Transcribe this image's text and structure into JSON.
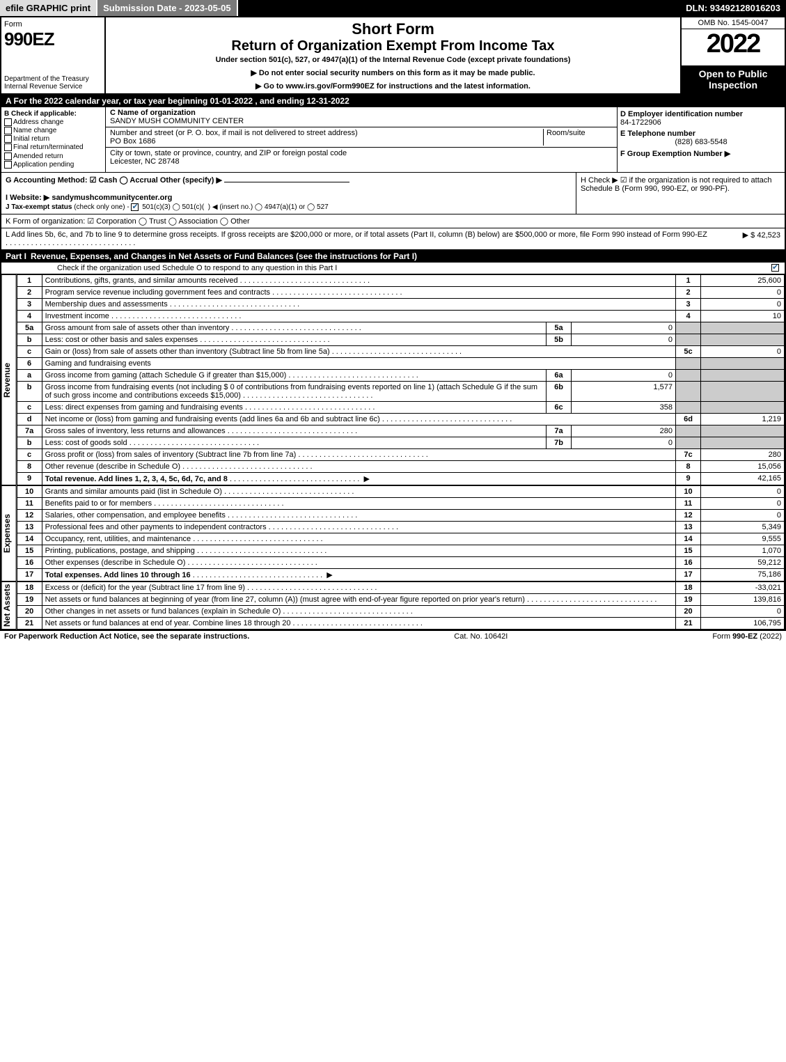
{
  "topbar": {
    "efile": "efile GRAPHIC print",
    "submission": "Submission Date - 2023-05-05",
    "dln": "DLN: 93492128016203"
  },
  "header": {
    "form_word": "Form",
    "form_num": "990EZ",
    "dept": "Department of the Treasury\nInternal Revenue Service",
    "title1": "Short Form",
    "title2": "Return of Organization Exempt From Income Tax",
    "sub1": "Under section 501(c), 527, or 4947(a)(1) of the Internal Revenue Code (except private foundations)",
    "sub2": "▶ Do not enter social security numbers on this form as it may be made public.",
    "sub3": "▶ Go to www.irs.gov/Form990EZ for instructions and the latest information.",
    "omb": "OMB No. 1545-0047",
    "year": "2022",
    "open": "Open to Public Inspection"
  },
  "lineA": "A  For the 2022 calendar year, or tax year beginning 01-01-2022 , and ending 12-31-2022",
  "boxB": {
    "title": "B  Check if applicable:",
    "addr": "Address change",
    "name": "Name change",
    "init": "Initial return",
    "final": "Final return/terminated",
    "amend": "Amended return",
    "app": "Application pending"
  },
  "boxC": {
    "name_lbl": "C Name of organization",
    "name": "SANDY MUSH COMMUNITY CENTER",
    "street_lbl": "Number and street (or P. O. box, if mail is not delivered to street address)",
    "room_lbl": "Room/suite",
    "street": "PO Box 1686",
    "city_lbl": "City or town, state or province, country, and ZIP or foreign postal code",
    "city": "Leicester, NC  28748"
  },
  "boxD": {
    "ein_lbl": "D Employer identification number",
    "ein": "84-1722906",
    "tel_lbl": "E Telephone number",
    "tel": "(828) 683-5548",
    "grp_lbl": "F Group Exemption Number  ▶"
  },
  "lineG": "G Accounting Method:   ☑ Cash  ◯ Accrual   Other (specify) ▶",
  "lineH": "H  Check ▶ ☑ if the organization is not required to attach Schedule B (Form 990, 990-EZ, or 990-PF).",
  "lineI": "I Website: ▶ sandymushcommunitycenter.org",
  "lineJ": "J Tax-exempt status (check only one) - ☑ 501(c)(3)  ◯ 501(c)(  ) ◀ (insert no.)  ◯ 4947(a)(1) or  ◯ 527",
  "lineK": "K Form of organization:  ☑ Corporation  ◯ Trust  ◯ Association  ◯ Other",
  "lineL": {
    "text": "L Add lines 5b, 6c, and 7b to line 9 to determine gross receipts. If gross receipts are $200,000 or more, or if total assets (Part II, column (B) below) are $500,000 or more, file Form 990 instead of Form 990-EZ",
    "amount": "▶ $ 42,523"
  },
  "part1": {
    "label": "Part I",
    "title": "Revenue, Expenses, and Changes in Net Assets or Fund Balances (see the instructions for Part I)",
    "sub": "Check if the organization used Schedule O to respond to any question in this Part I"
  },
  "sections": {
    "revenue": "Revenue",
    "expenses": "Expenses",
    "netassets": "Net Assets"
  },
  "rows": [
    {
      "ln": "1",
      "desc": "Contributions, gifts, grants, and similar amounts received",
      "num": "1",
      "amt": "25,600",
      "sec": "rev"
    },
    {
      "ln": "2",
      "desc": "Program service revenue including government fees and contracts",
      "num": "2",
      "amt": "0",
      "sec": "rev"
    },
    {
      "ln": "3",
      "desc": "Membership dues and assessments",
      "num": "3",
      "amt": "0",
      "sec": "rev"
    },
    {
      "ln": "4",
      "desc": "Investment income",
      "num": "4",
      "amt": "10",
      "sec": "rev"
    },
    {
      "ln": "5a",
      "desc": "Gross amount from sale of assets other than inventory",
      "sublbl": "5a",
      "subamt": "0",
      "sec": "rev",
      "shaded": true
    },
    {
      "ln": "b",
      "desc": "Less: cost or other basis and sales expenses",
      "sublbl": "5b",
      "subamt": "0",
      "sec": "rev",
      "shaded": true
    },
    {
      "ln": "c",
      "desc": "Gain or (loss) from sale of assets other than inventory (Subtract line 5b from line 5a)",
      "num": "5c",
      "amt": "0",
      "sec": "rev"
    },
    {
      "ln": "6",
      "desc": "Gaming and fundraising events",
      "sec": "rev",
      "shaded": true,
      "noamt": true
    },
    {
      "ln": "a",
      "desc": "Gross income from gaming (attach Schedule G if greater than $15,000)",
      "sublbl": "6a",
      "subamt": "0",
      "sec": "rev",
      "shaded": true
    },
    {
      "ln": "b",
      "desc": "Gross income from fundraising events (not including $  0               of contributions from fundraising events reported on line 1) (attach Schedule G if the sum of such gross income and contributions exceeds $15,000)",
      "sublbl": "6b",
      "subamt": "1,577",
      "sec": "rev",
      "shaded": true
    },
    {
      "ln": "c",
      "desc": "Less: direct expenses from gaming and fundraising events",
      "sublbl": "6c",
      "subamt": "358",
      "sec": "rev",
      "shaded": true
    },
    {
      "ln": "d",
      "desc": "Net income or (loss) from gaming and fundraising events (add lines 6a and 6b and subtract line 6c)",
      "num": "6d",
      "amt": "1,219",
      "sec": "rev"
    },
    {
      "ln": "7a",
      "desc": "Gross sales of inventory, less returns and allowances",
      "sublbl": "7a",
      "subamt": "280",
      "sec": "rev",
      "shaded": true
    },
    {
      "ln": "b",
      "desc": "Less: cost of goods sold",
      "sublbl": "7b",
      "subamt": "0",
      "sec": "rev",
      "shaded": true
    },
    {
      "ln": "c",
      "desc": "Gross profit or (loss) from sales of inventory (Subtract line 7b from line 7a)",
      "num": "7c",
      "amt": "280",
      "sec": "rev"
    },
    {
      "ln": "8",
      "desc": "Other revenue (describe in Schedule O)",
      "num": "8",
      "amt": "15,056",
      "sec": "rev"
    },
    {
      "ln": "9",
      "desc": "Total revenue. Add lines 1, 2, 3, 4, 5c, 6d, 7c, and 8",
      "num": "9",
      "amt": "42,165",
      "sec": "rev",
      "bold": true,
      "arrow": true
    },
    {
      "ln": "10",
      "desc": "Grants and similar amounts paid (list in Schedule O)",
      "num": "10",
      "amt": "0",
      "sec": "exp"
    },
    {
      "ln": "11",
      "desc": "Benefits paid to or for members",
      "num": "11",
      "amt": "0",
      "sec": "exp"
    },
    {
      "ln": "12",
      "desc": "Salaries, other compensation, and employee benefits",
      "num": "12",
      "amt": "0",
      "sec": "exp"
    },
    {
      "ln": "13",
      "desc": "Professional fees and other payments to independent contractors",
      "num": "13",
      "amt": "5,349",
      "sec": "exp"
    },
    {
      "ln": "14",
      "desc": "Occupancy, rent, utilities, and maintenance",
      "num": "14",
      "amt": "9,555",
      "sec": "exp"
    },
    {
      "ln": "15",
      "desc": "Printing, publications, postage, and shipping",
      "num": "15",
      "amt": "1,070",
      "sec": "exp"
    },
    {
      "ln": "16",
      "desc": "Other expenses (describe in Schedule O)",
      "num": "16",
      "amt": "59,212",
      "sec": "exp"
    },
    {
      "ln": "17",
      "desc": "Total expenses. Add lines 10 through 16",
      "num": "17",
      "amt": "75,186",
      "sec": "exp",
      "bold": true,
      "arrow": true
    },
    {
      "ln": "18",
      "desc": "Excess or (deficit) for the year (Subtract line 17 from line 9)",
      "num": "18",
      "amt": "-33,021",
      "sec": "na"
    },
    {
      "ln": "19",
      "desc": "Net assets or fund balances at beginning of year (from line 27, column (A)) (must agree with end-of-year figure reported on prior year's return)",
      "num": "19",
      "amt": "139,816",
      "sec": "na"
    },
    {
      "ln": "20",
      "desc": "Other changes in net assets or fund balances (explain in Schedule O)",
      "num": "20",
      "amt": "0",
      "sec": "na"
    },
    {
      "ln": "21",
      "desc": "Net assets or fund balances at end of year. Combine lines 18 through 20",
      "num": "21",
      "amt": "106,795",
      "sec": "na"
    }
  ],
  "footer": {
    "left": "For Paperwork Reduction Act Notice, see the separate instructions.",
    "mid": "Cat. No. 10642I",
    "right": "Form 990-EZ (2022)"
  }
}
